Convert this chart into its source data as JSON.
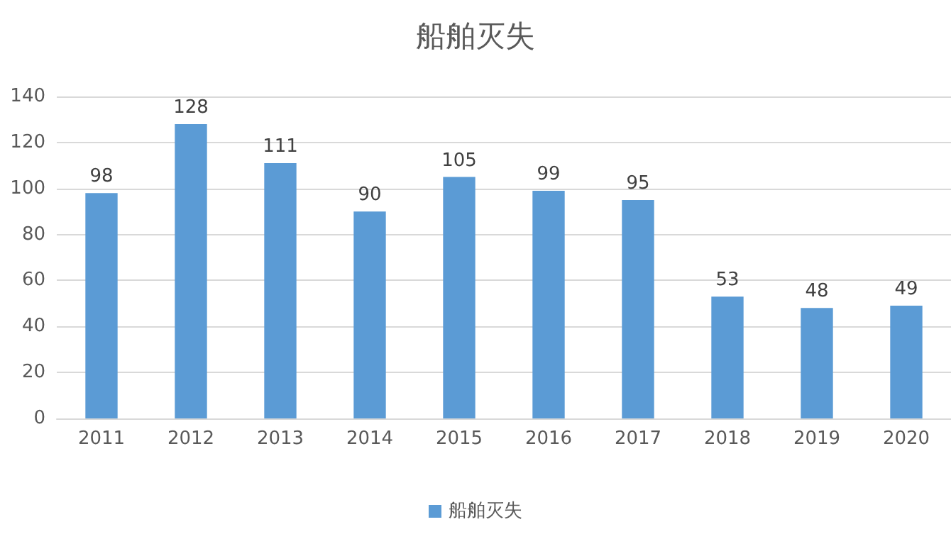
{
  "chart_data": {
    "type": "bar",
    "title": "船舶灭失",
    "categories": [
      "2011",
      "2012",
      "2013",
      "2014",
      "2015",
      "2016",
      "2017",
      "2018",
      "2019",
      "2020"
    ],
    "series": [
      {
        "name": "船舶灭失",
        "color": "#5b9bd5",
        "values": [
          98,
          128,
          111,
          90,
          105,
          99,
          95,
          53,
          48,
          49
        ]
      }
    ],
    "ylim": [
      0,
      140
    ],
    "yticks": [
      0,
      20,
      40,
      60,
      80,
      100,
      120,
      140
    ],
    "grid": "y",
    "legend": "bottom",
    "data_labels": true
  }
}
